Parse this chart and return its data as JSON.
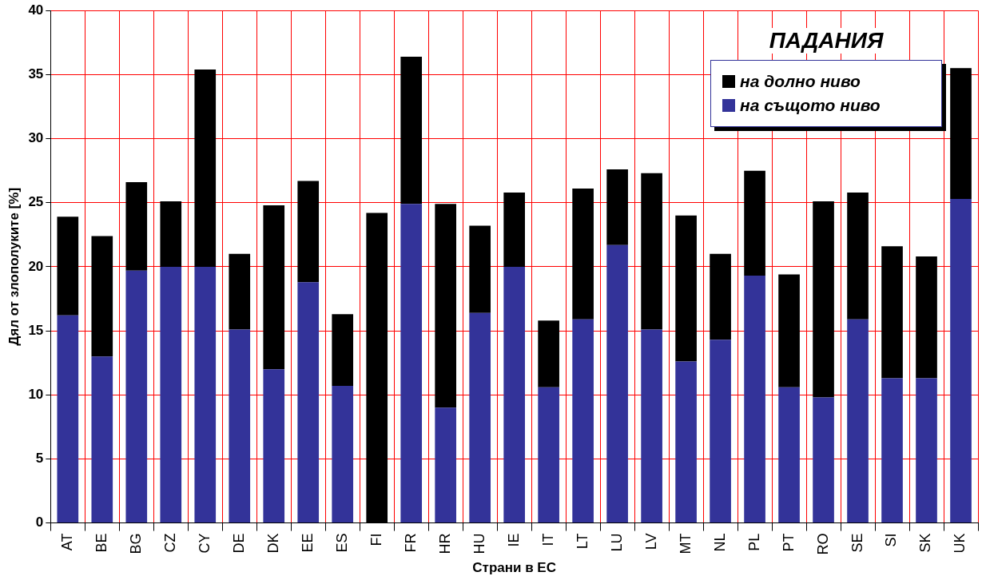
{
  "chart_data": {
    "type": "bar",
    "stacked": true,
    "xlabel": "Страни в ЕС",
    "ylabel": "Дял от злополуките [%]",
    "legend_title": "ПАДАНИЯ",
    "legend": "top right",
    "grid": true,
    "categories": [
      "AT",
      "BE",
      "BG",
      "CZ",
      "CY",
      "DE",
      "DK",
      "EE",
      "ES",
      "FI",
      "FR",
      "HR",
      "HU",
      "IE",
      "IT",
      "LT",
      "LU",
      "LV",
      "MT",
      "NL",
      "PL",
      "PT",
      "RO",
      "SE",
      "SI",
      "SK",
      "UK"
    ],
    "ylim": [
      0,
      40
    ],
    "yticks": [
      0,
      5,
      10,
      15,
      20,
      25,
      30,
      35,
      40
    ],
    "series": [
      {
        "name": "на същото ниво",
        "color": "#333399",
        "values": [
          16.2,
          13.0,
          19.7,
          20.0,
          20.0,
          15.1,
          12.0,
          18.8,
          10.7,
          0,
          24.9,
          9.0,
          16.4,
          20.0,
          10.6,
          15.9,
          21.7,
          15.1,
          12.6,
          14.3,
          19.3,
          10.6,
          9.8,
          15.9,
          11.3,
          11.3,
          25.3
        ]
      },
      {
        "name": "на долно ниво",
        "color": "#000000",
        "values": [
          7.7,
          9.4,
          6.9,
          5.1,
          15.4,
          5.9,
          12.8,
          7.9,
          5.6,
          24.2,
          11.5,
          15.9,
          6.8,
          5.8,
          5.2,
          10.2,
          5.9,
          12.2,
          11.4,
          6.7,
          8.2,
          8.8,
          15.3,
          9.9,
          10.3,
          9.5,
          10.2
        ]
      }
    ]
  }
}
